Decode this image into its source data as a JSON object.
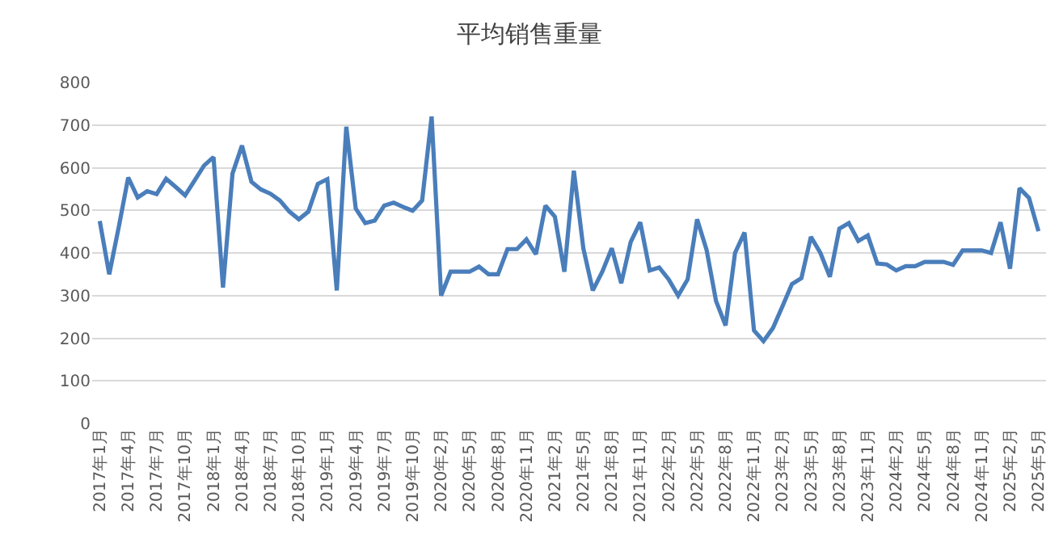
{
  "chart_data": {
    "type": "line",
    "title": "平均销售重量",
    "categories": [
      "2017年1月",
      null,
      null,
      "2017年4月",
      null,
      null,
      "2017年7月",
      null,
      null,
      "2017年10月",
      null,
      null,
      "2018年1月",
      null,
      null,
      "2018年4月",
      null,
      null,
      "2018年7月",
      null,
      null,
      "2018年10月",
      null,
      null,
      "2019年1月",
      null,
      null,
      "2019年4月",
      null,
      null,
      "2019年7月",
      null,
      null,
      "2019年10月",
      null,
      null,
      "2020年2月",
      null,
      null,
      "2020年5月",
      null,
      null,
      "2020年8月",
      null,
      null,
      "2020年11月",
      null,
      null,
      "2021年2月",
      null,
      null,
      "2021年5月",
      null,
      null,
      "2021年8月",
      null,
      null,
      "2021年11月",
      null,
      null,
      "2022年2月",
      null,
      null,
      "2022年5月",
      null,
      null,
      "2022年8月",
      null,
      null,
      "2022年11月",
      null,
      null,
      "2023年2月",
      null,
      null,
      "2023年5月",
      null,
      null,
      "2023年8月",
      null,
      null,
      "2023年11月",
      null,
      null,
      "2024年2月",
      null,
      null,
      "2024年5月",
      null,
      null,
      "2024年8月",
      null,
      null,
      "2024年11月",
      null,
      null,
      "2025年2月",
      null,
      null,
      "2025年5月"
    ],
    "series": [
      {
        "color": "#4a7ebb",
        "values": [
          475,
          350,
          460,
          577,
          530,
          545,
          538,
          574,
          555,
          535,
          570,
          605,
          625,
          319,
          586,
          652,
          567,
          549,
          539,
          523,
          497,
          479,
          497,
          562,
          573,
          312,
          696,
          504,
          470,
          476,
          511,
          518,
          508,
          499,
          523,
          720,
          300,
          356,
          356,
          356,
          368,
          350,
          350,
          409,
          409,
          432,
          397,
          511,
          485,
          356,
          593,
          411,
          312,
          356,
          411,
          329,
          426,
          472,
          359,
          366,
          338,
          300,
          338,
          479,
          407,
          287,
          230,
          400,
          448,
          218,
          193,
          224,
          275,
          327,
          341,
          438,
          400,
          344,
          457,
          470,
          428,
          441,
          375,
          373,
          359,
          369,
          369,
          379,
          379,
          379,
          372,
          406,
          406,
          406,
          400,
          472,
          363,
          552,
          529,
          451
        ]
      }
    ],
    "ylim": [
      0,
      800
    ],
    "yticks": [
      0,
      100,
      200,
      300,
      400,
      500,
      600,
      700,
      800
    ],
    "grid": "y",
    "legend": false,
    "marker": "none",
    "line_style": "solid"
  }
}
